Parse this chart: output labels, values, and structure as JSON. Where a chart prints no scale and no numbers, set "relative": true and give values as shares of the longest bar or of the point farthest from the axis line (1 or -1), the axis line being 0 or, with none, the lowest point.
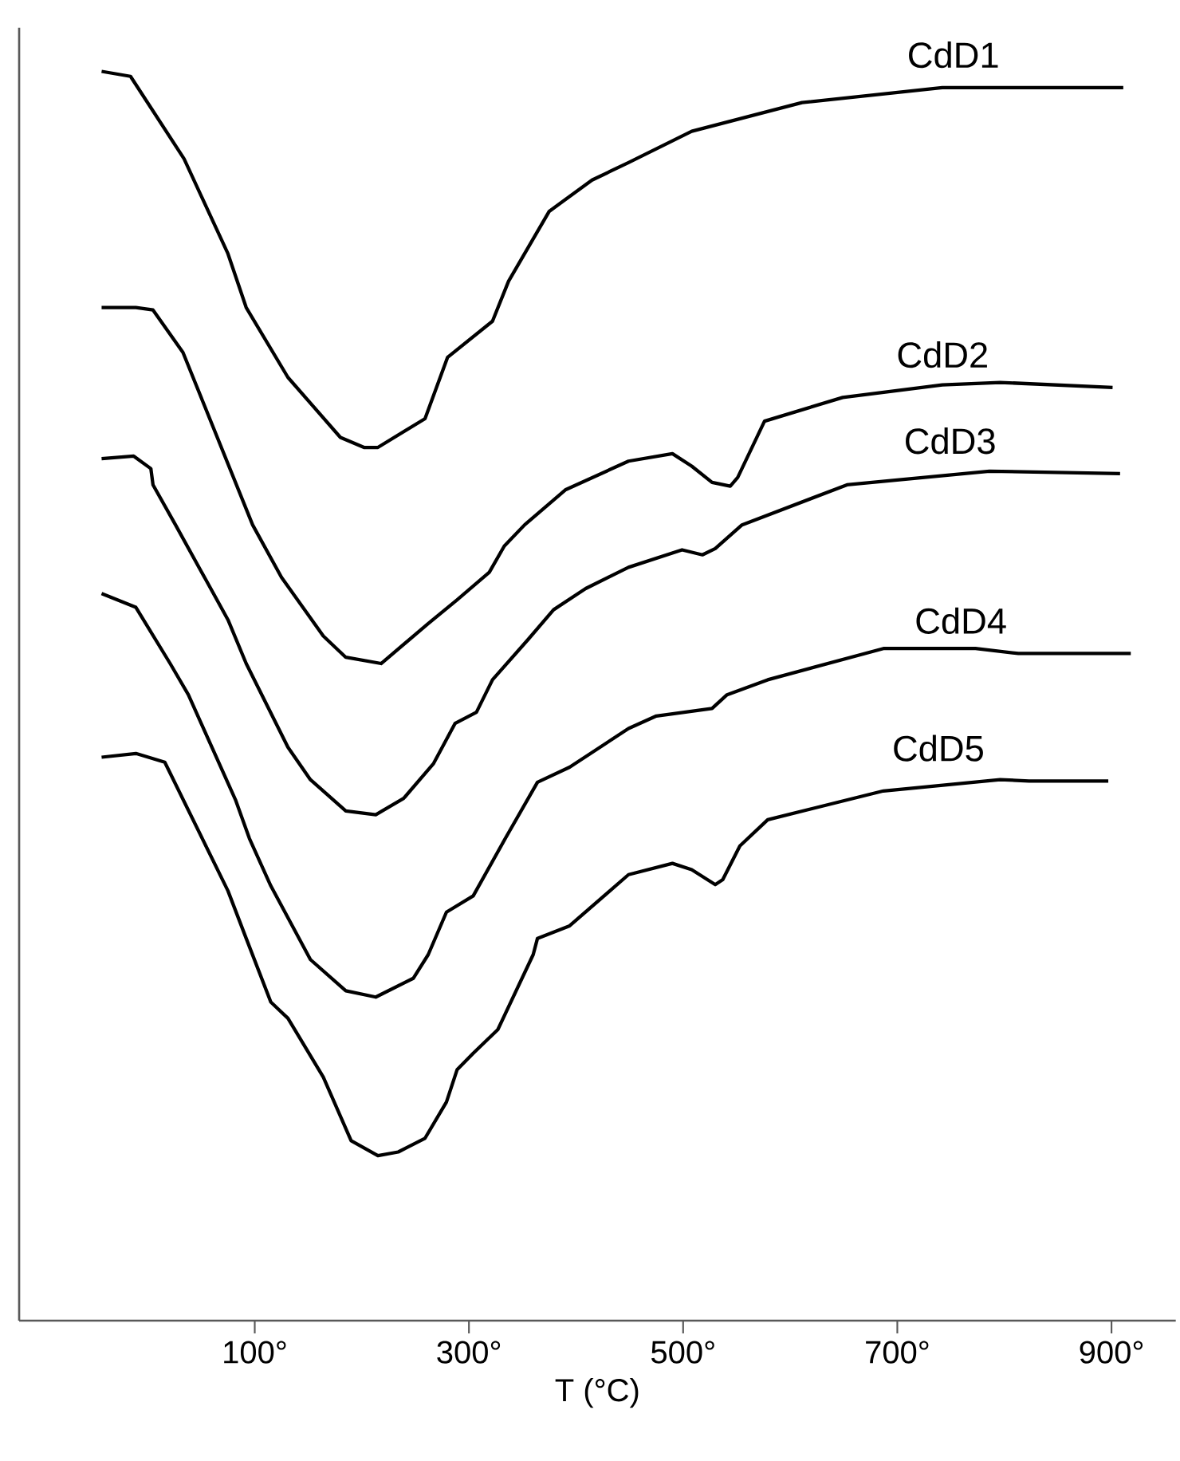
{
  "chart_data": {
    "type": "line",
    "relative": true,
    "xlabel": "T (°C)",
    "xlim": [
      -120,
      960
    ],
    "xticks": [
      {
        "value": 100,
        "label": "100°"
      },
      {
        "value": 300,
        "label": "300°"
      },
      {
        "value": 500,
        "label": "500°"
      },
      {
        "value": 700,
        "label": "700°"
      },
      {
        "value": 900,
        "label": "900°"
      }
    ],
    "line_style": "solid",
    "series": [
      {
        "name": "CdD1",
        "color": "#000000",
        "x": [
          -43,
          -16,
          34,
          75,
          92,
          131,
          180,
          202,
          215,
          259,
          280,
          322,
          337,
          375,
          415,
          449,
          508,
          611,
          742,
          911
        ],
        "values": [
          1.0,
          0.996,
          0.93,
          0.854,
          0.811,
          0.755,
          0.707,
          0.699,
          0.699,
          0.722,
          0.771,
          0.8,
          0.832,
          0.888,
          0.913,
          0.927,
          0.952,
          0.975,
          0.987,
          0.987
        ]
      },
      {
        "name": "CdD2",
        "color": "#000000",
        "x": [
          -43,
          -11,
          5,
          33,
          98,
          125,
          164,
          185,
          218,
          262,
          289,
          319,
          333,
          352,
          390,
          449,
          490,
          508,
          527,
          544,
          551,
          576,
          649,
          742,
          796,
          901
        ],
        "values": [
          0.811,
          0.811,
          0.809,
          0.775,
          0.637,
          0.595,
          0.548,
          0.531,
          0.526,
          0.558,
          0.577,
          0.599,
          0.62,
          0.637,
          0.665,
          0.688,
          0.694,
          0.684,
          0.671,
          0.668,
          0.675,
          0.72,
          0.739,
          0.749,
          0.751,
          0.747
        ]
      },
      {
        "name": "CdD3",
        "color": "#000000",
        "x": [
          -43,
          -13,
          3,
          5,
          26,
          75,
          92,
          131,
          152,
          185,
          213,
          239,
          267,
          287,
          307,
          322,
          355,
          379,
          409,
          449,
          499,
          518,
          530,
          555,
          653,
          786,
          908
        ],
        "values": [
          0.69,
          0.692,
          0.682,
          0.669,
          0.637,
          0.561,
          0.526,
          0.459,
          0.433,
          0.408,
          0.405,
          0.418,
          0.446,
          0.478,
          0.487,
          0.513,
          0.545,
          0.569,
          0.586,
          0.603,
          0.617,
          0.613,
          0.618,
          0.637,
          0.669,
          0.68,
          0.678
        ]
      },
      {
        "name": "CdD4",
        "color": "#000000",
        "x": [
          -43,
          -11,
          21,
          38,
          82,
          95,
          115,
          152,
          185,
          213,
          248,
          262,
          279,
          304,
          334,
          364,
          394,
          449,
          475,
          527,
          541,
          579,
          687,
          773,
          813,
          918
        ],
        "values": [
          0.582,
          0.571,
          0.526,
          0.501,
          0.417,
          0.386,
          0.348,
          0.289,
          0.264,
          0.259,
          0.274,
          0.293,
          0.327,
          0.34,
          0.386,
          0.431,
          0.443,
          0.474,
          0.484,
          0.49,
          0.501,
          0.513,
          0.538,
          0.538,
          0.534,
          0.534
        ]
      },
      {
        "name": "CdD5",
        "color": "#000000",
        "x": [
          -43,
          -11,
          16,
          75,
          92,
          115,
          131,
          164,
          190,
          215,
          234,
          259,
          279,
          289,
          304,
          327,
          360,
          364,
          394,
          449,
          490,
          508,
          530,
          537,
          553,
          579,
          687,
          796,
          823,
          897
        ],
        "values": [
          0.451,
          0.454,
          0.447,
          0.344,
          0.306,
          0.255,
          0.242,
          0.195,
          0.144,
          0.132,
          0.135,
          0.146,
          0.175,
          0.201,
          0.214,
          0.233,
          0.293,
          0.306,
          0.316,
          0.357,
          0.366,
          0.361,
          0.349,
          0.353,
          0.38,
          0.401,
          0.424,
          0.433,
          0.432,
          0.432
        ]
      }
    ]
  }
}
